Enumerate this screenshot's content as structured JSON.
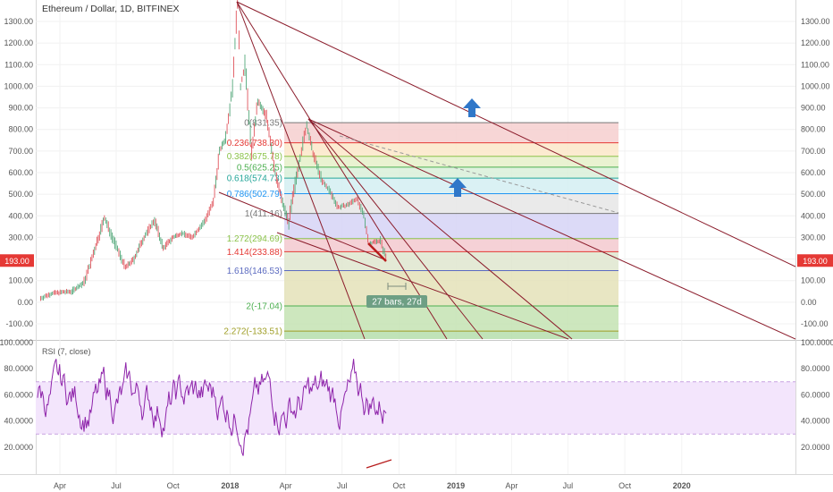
{
  "chart_data": {
    "type": "candlestick",
    "title": "Ethereum / Dollar, 1D, BITFINEX",
    "price_axis": {
      "min": -160,
      "max": 1380,
      "ticks": [
        1300,
        1200,
        1100,
        1000,
        900,
        800,
        700,
        600,
        500,
        400,
        300,
        200,
        100,
        0,
        -100
      ],
      "tick_labels": [
        "1300.00",
        "1200.00",
        "1100.00",
        "1000.00",
        "900.00",
        "800.00",
        "700.00",
        "600.00",
        "500.00",
        "400.00",
        "300.00",
        "200.00",
        "100.00",
        "0.00",
        "-100.00"
      ]
    },
    "current_price": {
      "value": 193,
      "label": "193.00",
      "color": "#e53935"
    },
    "time_axis": {
      "labels": [
        "Apr",
        "Jul",
        "Oct",
        "2018",
        "Apr",
        "Jul",
        "Oct",
        "2019",
        "Apr",
        "Jul",
        "Oct",
        "2020"
      ],
      "bold": [
        "2018",
        "2019",
        "2020"
      ]
    },
    "price_series": [
      [
        "2017-03-01",
        18
      ],
      [
        "2017-03-20",
        42
      ],
      [
        "2017-04-20",
        50
      ],
      [
        "2017-05-10",
        90
      ],
      [
        "2017-05-25",
        220
      ],
      [
        "2017-06-12",
        390
      ],
      [
        "2017-07-01",
        260
      ],
      [
        "2017-07-16",
        160
      ],
      [
        "2017-07-30",
        200
      ],
      [
        "2017-08-15",
        300
      ],
      [
        "2017-09-01",
        380
      ],
      [
        "2017-09-15",
        250
      ],
      [
        "2017-10-01",
        300
      ],
      [
        "2017-10-15",
        320
      ],
      [
        "2017-11-01",
        300
      ],
      [
        "2017-11-20",
        370
      ],
      [
        "2017-12-05",
        460
      ],
      [
        "2017-12-15",
        700
      ],
      [
        "2017-12-25",
        760
      ],
      [
        "2018-01-05",
        1000
      ],
      [
        "2018-01-13",
        1390
      ],
      [
        "2018-01-18",
        1000
      ],
      [
        "2018-01-25",
        1100
      ],
      [
        "2018-02-05",
        700
      ],
      [
        "2018-02-15",
        930
      ],
      [
        "2018-03-01",
        860
      ],
      [
        "2018-03-15",
        600
      ],
      [
        "2018-03-25",
        480
      ],
      [
        "2018-04-06",
        370
      ],
      [
        "2018-04-20",
        610
      ],
      [
        "2018-05-05",
        820
      ],
      [
        "2018-05-15",
        690
      ],
      [
        "2018-05-30",
        560
      ],
      [
        "2018-06-10",
        520
      ],
      [
        "2018-06-25",
        440
      ],
      [
        "2018-07-10",
        450
      ],
      [
        "2018-07-25",
        480
      ],
      [
        "2018-08-05",
        400
      ],
      [
        "2018-08-14",
        270
      ],
      [
        "2018-08-22",
        280
      ],
      [
        "2018-09-01",
        285
      ],
      [
        "2018-09-12",
        190
      ]
    ],
    "fibonacci": {
      "levels": [
        {
          "ratio": "0",
          "price": "831.35",
          "label": "0(831.35)",
          "color": "#777777",
          "bg": "#f6cfcf"
        },
        {
          "ratio": "0.236",
          "price": "738.30",
          "label": "0.236(738.30)",
          "color": "#e53935",
          "bg": "#fbe8c9"
        },
        {
          "ratio": "0.382",
          "price": "675.78",
          "label": "0.382(675.78)",
          "color": "#8bc34a",
          "bg": "#e5f0c9"
        },
        {
          "ratio": "0.5",
          "price": "625.25",
          "label": "0.5(625.25)",
          "color": "#4caf50",
          "bg": "#d9f0d9"
        },
        {
          "ratio": "0.618",
          "price": "574.73",
          "label": "0.618(574.73)",
          "color": "#26a69a",
          "bg": "#d4eef2"
        },
        {
          "ratio": "0.786",
          "price": "502.79",
          "label": "0.786(502.79)",
          "color": "#2196f3",
          "bg": "#e6e6e6"
        },
        {
          "ratio": "1",
          "price": "411.16",
          "label": "1(411.16)",
          "color": "#777777",
          "bg": "#d6d3f6"
        },
        {
          "ratio": "1.272",
          "price": "294.69",
          "label": "1.272(294.69)",
          "color": "#8bc34a",
          "bg": "#f3c9cf"
        },
        {
          "ratio": "1.414",
          "price": "233.88",
          "label": "1.414(233.88)",
          "color": "#e53935",
          "bg": "#dfe6cf"
        },
        {
          "ratio": "1.618",
          "price": "146.53",
          "label": "1.618(146.53)",
          "color": "#5c6bc0",
          "bg": "#e4e2b8"
        },
        {
          "ratio": "2",
          "price": "-17.04",
          "label": "2(-17.04)",
          "color": "#4caf50",
          "bg": "#c4e3b3"
        },
        {
          "ratio": "2.272",
          "price": "-133.51",
          "label": "2.272(-133.51)",
          "color": "#9e9d24",
          "bg": "#b5deab"
        }
      ]
    },
    "measure_label": "27 bars, 27d",
    "rsi": {
      "title": "RSI (7, close)",
      "axis_min": 0,
      "axis_max": 100,
      "ticks": [
        100,
        80,
        60,
        40,
        20
      ],
      "tick_labels": [
        "100.0000",
        "80.0000",
        "60.0000",
        "40.0000",
        "20.0000"
      ],
      "upper_band": 70,
      "lower_band": 30,
      "color": "#8e24aa",
      "band_color": "#f3e5fc"
    }
  }
}
